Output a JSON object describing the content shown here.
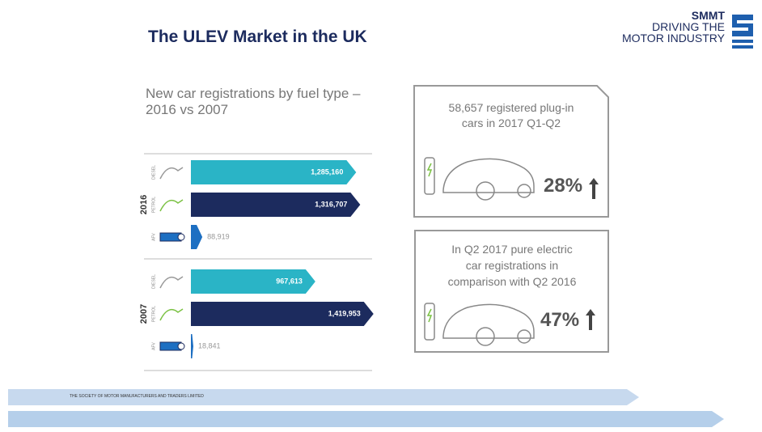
{
  "header": {
    "title": "The ULEV Market in the UK",
    "logo": {
      "name": "SMMT",
      "lines": [
        "DRIVING THE",
        "MOTOR INDUSTRY"
      ]
    }
  },
  "chart_data": {
    "type": "bar",
    "orientation": "horizontal",
    "title": "New car registrations by fuel type – 2016 vs 2007",
    "groups": [
      {
        "name": "2016",
        "categories": [
          "DIESEL",
          "PETROL",
          "AFV"
        ],
        "values": [
          1285160,
          1316707,
          88919
        ],
        "value_labels": [
          "1,285,160",
          "1,316,707",
          "88,919"
        ]
      },
      {
        "name": "2007",
        "categories": [
          "DIESEL",
          "PETROL",
          "AFV"
        ],
        "values": [
          967613,
          1419953,
          18841
        ],
        "value_labels": [
          "967,613",
          "1,419,953",
          "18,841"
        ]
      }
    ],
    "colors": [
      "#2ab4c6",
      "#1c2b5e",
      "#1d6fc2"
    ]
  },
  "cards": [
    {
      "lines": [
        "58,657 registered plug-in",
        "cars in 2017 Q1-Q2"
      ],
      "figure": "28%"
    },
    {
      "lines": [
        "In Q2 2017 pure electric",
        "car registrations in",
        "comparison with Q2 2016"
      ],
      "figure": "47%"
    }
  ],
  "footer": {
    "text": "THE SOCIETY OF MOTOR MANUFACTURERS AND TRADERS LIMITED"
  }
}
